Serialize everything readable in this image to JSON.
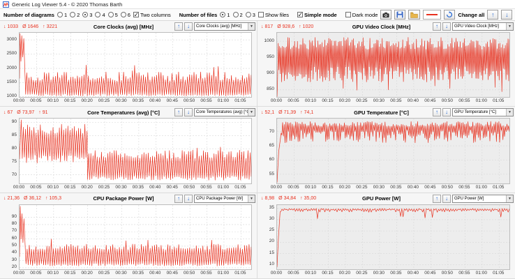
{
  "window": {
    "title": "Generic Log Viewer 5.4 - © 2020 Thomas Barth"
  },
  "symbols": {
    "min": "↓",
    "avg": "Ø",
    "max": "↑"
  },
  "icons": {
    "up": "↑",
    "down": "↓",
    "combo_arrow": "▼"
  },
  "toolbar": {
    "diagrams_label": "Number of diagrams",
    "diagram_options": [
      "1",
      "2",
      "3",
      "4",
      "5",
      "6"
    ],
    "diagrams_selected": "3",
    "two_columns_label": "Two columns",
    "two_columns_checked": true,
    "files_label": "Number of files",
    "file_options": [
      "1",
      "2",
      "3"
    ],
    "files_selected": "1",
    "show_files_label": "Show files",
    "show_files_checked": false,
    "simple_mode_label": "Simple mode",
    "simple_mode_checked": true,
    "dark_mode_label": "Dark mode",
    "dark_mode_checked": false,
    "change_all_label": "Change all"
  },
  "charts": [
    {
      "title": "Core Clocks (avg) [MHz]",
      "dropdown": "Core Clocks (avg) [MHz]",
      "stats": {
        "min": "1033",
        "avg": "1646",
        "max": "3221"
      }
    },
    {
      "title": "GPU Video Clock [MHz]",
      "dropdown": "GPU Video Clock [MHz]",
      "stats": {
        "min": "817",
        "avg": "928,6",
        "max": "1020"
      }
    },
    {
      "title": "Core Temperatures (avg) [°C]",
      "dropdown": "Core Temperatures (avg) [°C]",
      "stats": {
        "min": "67",
        "avg": "73,97",
        "max": "91"
      }
    },
    {
      "title": "GPU Temperature [°C]",
      "dropdown": "GPU Temperature [°C]",
      "stats": {
        "min": "52,1",
        "avg": "71,39",
        "max": "74,1"
      }
    },
    {
      "title": "CPU Package Power [W]",
      "dropdown": "CPU Package Power [W]",
      "stats": {
        "min": "21,36",
        "avg": "36,12",
        "max": "105,3"
      }
    },
    {
      "title": "GPU Power [W]",
      "dropdown": "GPU Power [W]",
      "stats": {
        "min": "8,98",
        "avg": "34,84",
        "max": "35,00"
      }
    }
  ],
  "chart_data": [
    {
      "type": "line",
      "title": "Core Clocks (avg) [MHz]",
      "unit": "MHz",
      "stats": {
        "min": 1033,
        "avg": 1646,
        "max": 3221
      },
      "x_ticks": [
        "00:00",
        "00:05",
        "00:10",
        "00:15",
        "00:20",
        "00:25",
        "00:30",
        "00:35",
        "00:40",
        "00:45",
        "00:50",
        "00:55",
        "01:00",
        "01:05"
      ],
      "x_tick_minutes": 5,
      "x_max_minutes": 68,
      "y_ticks": [
        1000,
        1500,
        2000,
        2500,
        3000
      ],
      "y_min": 1000,
      "y_max": 3250,
      "series_color": "#e8311f",
      "segments": [
        {
          "type": "points",
          "points": [
            [
              0,
              1650
            ],
            [
              0.15,
              3221
            ],
            [
              0.4,
              2250
            ],
            [
              0.65,
              3150
            ],
            [
              0.95,
              2400
            ],
            [
              1.25,
              3050
            ],
            [
              1.6,
              1800
            ]
          ]
        },
        {
          "type": "osc",
          "t0": 1.8,
          "t1": 68,
          "cpm": 1.55,
          "lo": 1035,
          "lo_jit": 70,
          "hi": 1880,
          "hi_jit": 320,
          "spike_p": 0.05,
          "spike_add": 300,
          "seed": 1
        }
      ]
    },
    {
      "type": "line",
      "title": "GPU Video Clock [MHz]",
      "unit": "MHz",
      "stats": {
        "min": 817,
        "avg": 928.6,
        "max": 1020
      },
      "x_ticks": [
        "00:00",
        "00:05",
        "00:10",
        "00:15",
        "00:20",
        "00:25",
        "00:30",
        "00:35",
        "00:40",
        "00:45",
        "00:50",
        "00:55",
        "01:00",
        "01:05"
      ],
      "x_tick_minutes": 5,
      "x_max_minutes": 68,
      "y_ticks": [
        850,
        900,
        950,
        1000
      ],
      "y_min": 828,
      "y_max": 1026,
      "series_color": "#e8311f",
      "segments": [
        {
          "type": "points",
          "points": [
            [
              0,
              817
            ]
          ]
        },
        {
          "type": "osc",
          "t0": 0.15,
          "t1": 68,
          "cpm": 2.5,
          "lo": 874,
          "lo_jit": 48,
          "hi": 1012,
          "hi_jit": 38,
          "dip_p": 0.05,
          "dip_add": 30,
          "seed": 2
        }
      ]
    },
    {
      "type": "line",
      "title": "Core Temperatures (avg) [°C]",
      "unit": "°C",
      "stats": {
        "min": 67,
        "avg": 73.97,
        "max": 91
      },
      "x_ticks": [
        "00:00",
        "00:05",
        "00:10",
        "00:15",
        "00:20",
        "00:25",
        "00:30",
        "00:35",
        "00:40",
        "00:45",
        "00:50",
        "00:55",
        "01:00",
        "01:05"
      ],
      "x_tick_minutes": 5,
      "x_max_minutes": 68,
      "y_ticks": [
        70,
        75,
        80,
        85,
        90
      ],
      "y_min": 67,
      "y_max": 91.5,
      "series_color": "#e8311f",
      "segments": [
        {
          "type": "points",
          "points": [
            [
              0,
              76
            ],
            [
              0.5,
              91
            ]
          ]
        },
        {
          "type": "osc",
          "t0": 0.8,
          "t1": 19.8,
          "cpm": 1.6,
          "lo": 74.5,
          "lo_jit": 3,
          "hi": 89.5,
          "hi_jit": 4,
          "seed": 3
        },
        {
          "type": "osc",
          "t0": 20,
          "t1": 68,
          "cpm": 1.6,
          "lo": 68,
          "lo_jit": 1.6,
          "hi": 79.5,
          "hi_jit": 3.2,
          "spike_p": 0.05,
          "spike_add": 2,
          "seed": 4
        }
      ]
    },
    {
      "type": "line",
      "title": "GPU Temperature [°C]",
      "unit": "°C",
      "stats": {
        "min": 52.1,
        "avg": 71.39,
        "max": 74.1
      },
      "x_ticks": [
        "00:00",
        "00:05",
        "00:10",
        "00:15",
        "00:20",
        "00:25",
        "00:30",
        "00:35",
        "00:40",
        "00:45",
        "00:50",
        "00:55",
        "01:00",
        "01:05"
      ],
      "x_tick_minutes": 5,
      "x_max_minutes": 68,
      "y_ticks": [
        55,
        60,
        65,
        70
      ],
      "y_min": 52,
      "y_max": 74.6,
      "series_color": "#e8311f",
      "segments": [
        {
          "type": "points",
          "points": [
            [
              0,
              52.1
            ],
            [
              0.5,
              63
            ],
            [
              1.2,
              69.5
            ]
          ]
        },
        {
          "type": "osc",
          "t0": 1.4,
          "t1": 68,
          "cpm": 2.1,
          "lo": 66,
          "lo_jit": 4.5,
          "hi": 73.6,
          "hi_jit": 1.8,
          "dip_p": 0.06,
          "dip_add": 1.5,
          "seed": 5
        }
      ]
    },
    {
      "type": "line",
      "title": "CPU Package Power [W]",
      "unit": "W",
      "stats": {
        "min": 21.36,
        "avg": 36.12,
        "max": 105.3
      },
      "x_ticks": [
        "00:00",
        "00:05",
        "00:10",
        "00:15",
        "00:20",
        "00:25",
        "00:30",
        "00:35",
        "00:40",
        "00:45",
        "00:50",
        "00:55",
        "01:00",
        "01:05"
      ],
      "x_tick_minutes": 5,
      "x_max_minutes": 68,
      "y_ticks": [
        20,
        30,
        40,
        50,
        60,
        70,
        80,
        90
      ],
      "y_min": 18,
      "y_max": 107,
      "series_color": "#e8311f",
      "segments": [
        {
          "type": "points",
          "points": [
            [
              0,
              35
            ],
            [
              0.2,
              105.3
            ],
            [
              0.45,
              60
            ],
            [
              0.7,
              95
            ],
            [
              1.0,
              55
            ],
            [
              1.3,
              88
            ],
            [
              1.7,
              45
            ]
          ]
        },
        {
          "type": "osc",
          "t0": 1.9,
          "t1": 68,
          "cpm": 1.55,
          "lo": 22.5,
          "lo_jit": 3.5,
          "hi": 53,
          "hi_jit": 8,
          "spike_p": 0.05,
          "spike_add": 8,
          "seed": 6
        }
      ]
    },
    {
      "type": "line",
      "title": "GPU Power [W]",
      "unit": "W",
      "stats": {
        "min": 8.98,
        "avg": 34.84,
        "max": 35.0
      },
      "x_ticks": [
        "00:00",
        "00:05",
        "00:10",
        "00:15",
        "00:20",
        "00:25",
        "00:30",
        "00:35",
        "00:40",
        "00:45",
        "00:50",
        "00:55",
        "01:00",
        "01:05"
      ],
      "x_tick_minutes": 5,
      "x_max_minutes": 68,
      "y_ticks": [
        10,
        15,
        20,
        25,
        30,
        35
      ],
      "y_min": 8,
      "y_max": 36.5,
      "series_color": "#e8311f",
      "segments": [
        {
          "type": "points",
          "points": [
            [
              0,
              8.98
            ],
            [
              0.4,
              22
            ],
            [
              0.9,
              33.5
            ]
          ]
        },
        {
          "type": "osc",
          "t0": 1.1,
          "t1": 68,
          "cpm": 1.4,
          "lo": 33.3,
          "lo_jit": 1.2,
          "hi": 35,
          "hi_jit": 0.4,
          "dip_p": 0.05,
          "dip_add": 3,
          "seed": 7
        }
      ]
    }
  ]
}
